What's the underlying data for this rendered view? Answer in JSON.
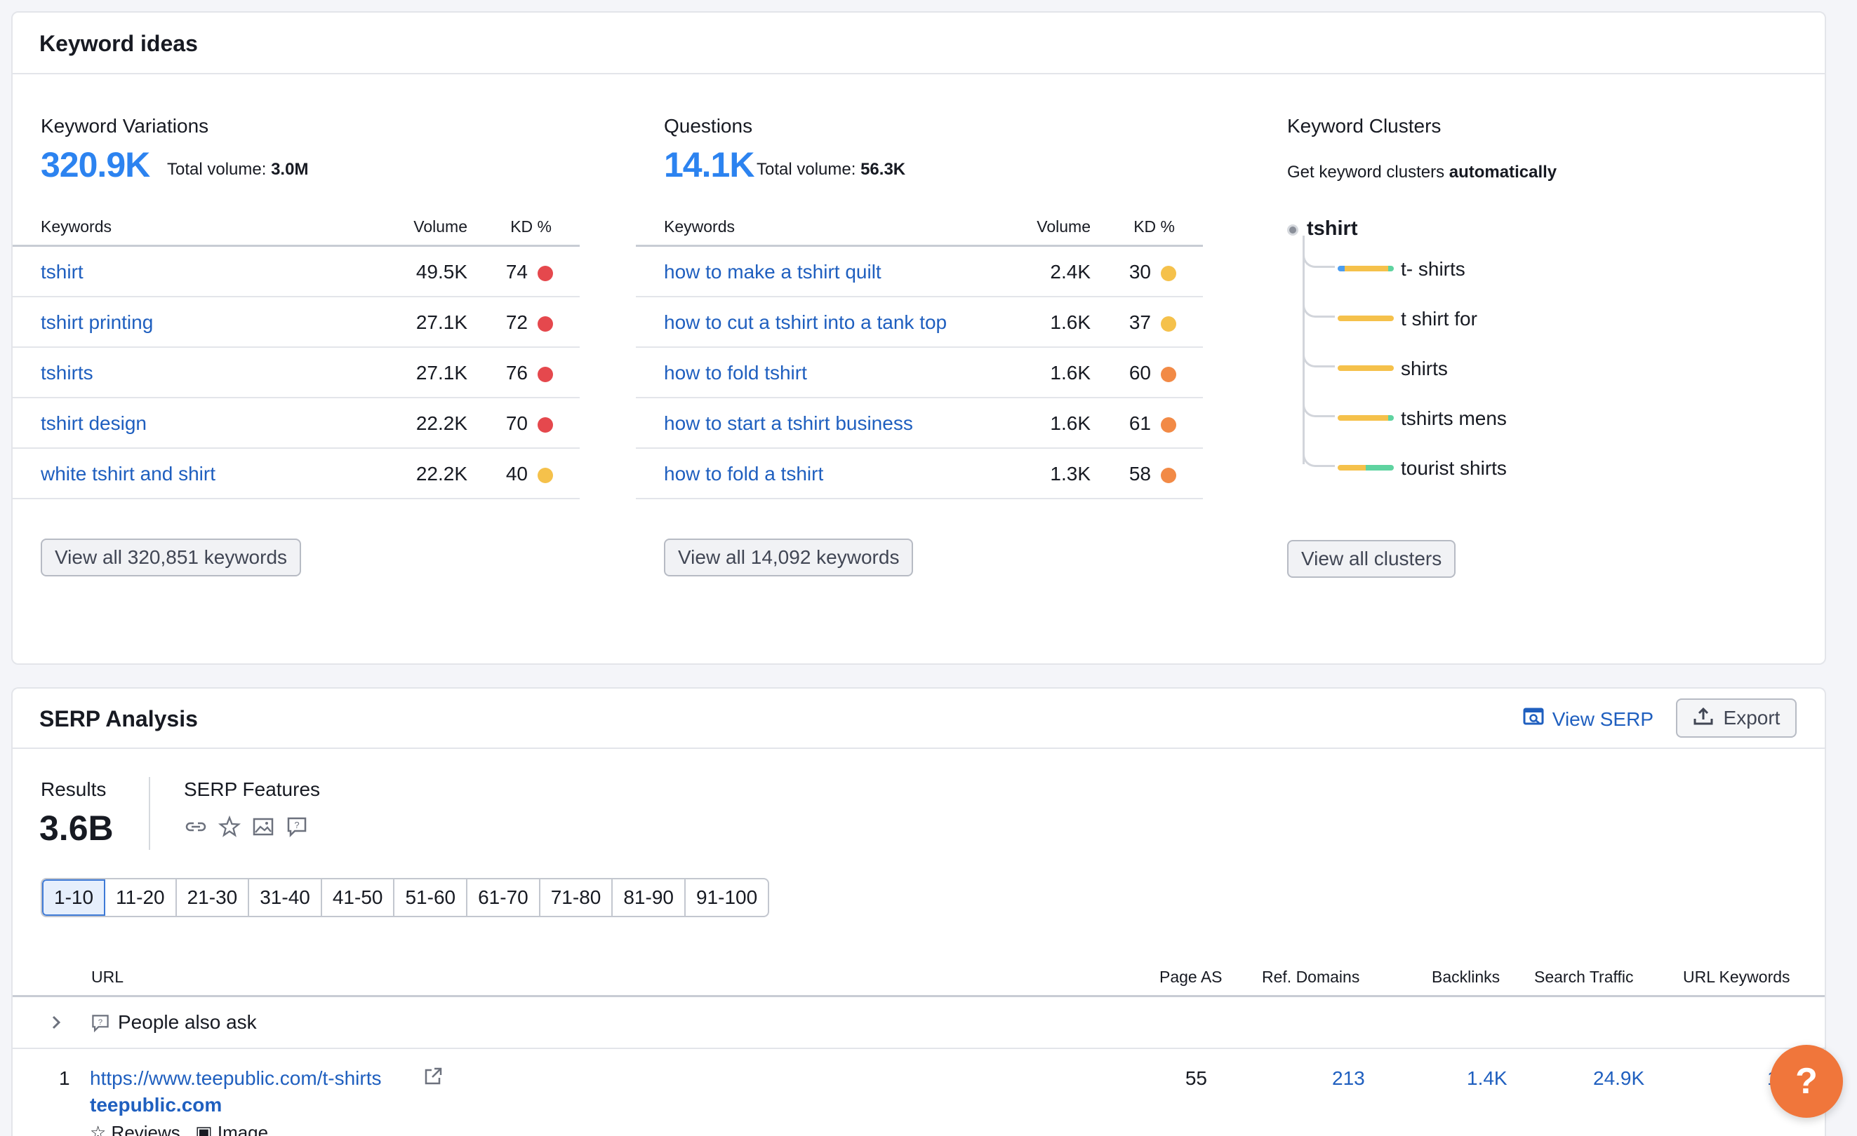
{
  "keyword_ideas": {
    "title": "Keyword ideas",
    "variations": {
      "title": "Keyword Variations",
      "total": "320.9K",
      "total_volume_label": "Total volume:",
      "total_volume": "3.0M",
      "headers": [
        "Keywords",
        "Volume",
        "KD %"
      ],
      "rows": [
        {
          "keyword": "tshirt",
          "volume": "49.5K",
          "kd": "74",
          "kd_color": "#e5484d"
        },
        {
          "keyword": "tshirt printing",
          "volume": "27.1K",
          "kd": "72",
          "kd_color": "#e5484d"
        },
        {
          "keyword": "tshirts",
          "volume": "27.1K",
          "kd": "76",
          "kd_color": "#e5484d"
        },
        {
          "keyword": "tshirt design",
          "volume": "22.2K",
          "kd": "70",
          "kd_color": "#e5484d"
        },
        {
          "keyword": "white tshirt and shirt",
          "volume": "22.2K",
          "kd": "40",
          "kd_color": "#f5c14b"
        }
      ],
      "view_all": "View all 320,851 keywords"
    },
    "questions": {
      "title": "Questions",
      "total": "14.1K",
      "total_volume_label": "Total volume:",
      "total_volume": "56.3K",
      "headers": [
        "Keywords",
        "Volume",
        "KD %"
      ],
      "rows": [
        {
          "keyword": "how to make a tshirt quilt",
          "volume": "2.4K",
          "kd": "30",
          "kd_color": "#f5c14b"
        },
        {
          "keyword": "how to cut a tshirt into a tank top",
          "volume": "1.6K",
          "kd": "37",
          "kd_color": "#f5c14b"
        },
        {
          "keyword": "how to fold tshirt",
          "volume": "1.6K",
          "kd": "60",
          "kd_color": "#f28a46"
        },
        {
          "keyword": "how to start a tshirt business",
          "volume": "1.6K",
          "kd": "61",
          "kd_color": "#f28a46"
        },
        {
          "keyword": "how to fold a tshirt",
          "volume": "1.3K",
          "kd": "58",
          "kd_color": "#f28a46"
        }
      ],
      "view_all": "View all 14,092 keywords"
    },
    "clusters": {
      "title": "Keyword Clusters",
      "subtitle_prefix": "Get keyword clusters",
      "subtitle_bold": "automatically",
      "root": "tshirt",
      "items": [
        {
          "label": "t- shirts",
          "segments": [
            [
              "#4c9df0",
              0.12
            ],
            [
              "#f5c14b",
              0.78
            ],
            [
              "#5fd3a0",
              0.1
            ]
          ]
        },
        {
          "label": "t shirt for",
          "segments": [
            [
              "#f5c14b",
              1.0
            ]
          ]
        },
        {
          "label": "shirts",
          "segments": [
            [
              "#f5c14b",
              1.0
            ]
          ]
        },
        {
          "label": "tshirts mens",
          "segments": [
            [
              "#f5c14b",
              0.9
            ],
            [
              "#5fd3a0",
              0.1
            ]
          ]
        },
        {
          "label": "tourist shirts",
          "segments": [
            [
              "#f5c14b",
              0.5
            ],
            [
              "#5fd3a0",
              0.5
            ]
          ]
        }
      ],
      "view_all": "View all clusters"
    }
  },
  "serp": {
    "title": "SERP Analysis",
    "view_serp": "View SERP",
    "export": "Export",
    "results_label": "Results",
    "results_value": "3.6B",
    "features_label": "SERP Features",
    "feature_icons": [
      "link-icon",
      "star-icon",
      "image-icon",
      "question-icon"
    ],
    "pages": [
      "1-10",
      "11-20",
      "21-30",
      "31-40",
      "41-50",
      "51-60",
      "61-70",
      "71-80",
      "81-90",
      "91-100"
    ],
    "active_page": "1-10",
    "headers": {
      "url": "URL",
      "page_as": "Page AS",
      "ref_domains": "Ref. Domains",
      "backlinks": "Backlinks",
      "search_traffic": "Search Traffic",
      "url_keywords": "URL Keywords"
    },
    "paa_label": "People also ask",
    "results": [
      {
        "rank": "1",
        "url": "https://www.teepublic.com/t-shirts",
        "domain": "teepublic.com",
        "page_as": "55",
        "ref_domains": "213",
        "backlinks": "1.4K",
        "search_traffic": "24.9K",
        "url_keywords": "1",
        "features": [
          "Reviews",
          "Image"
        ]
      }
    ]
  },
  "help_label": "?"
}
